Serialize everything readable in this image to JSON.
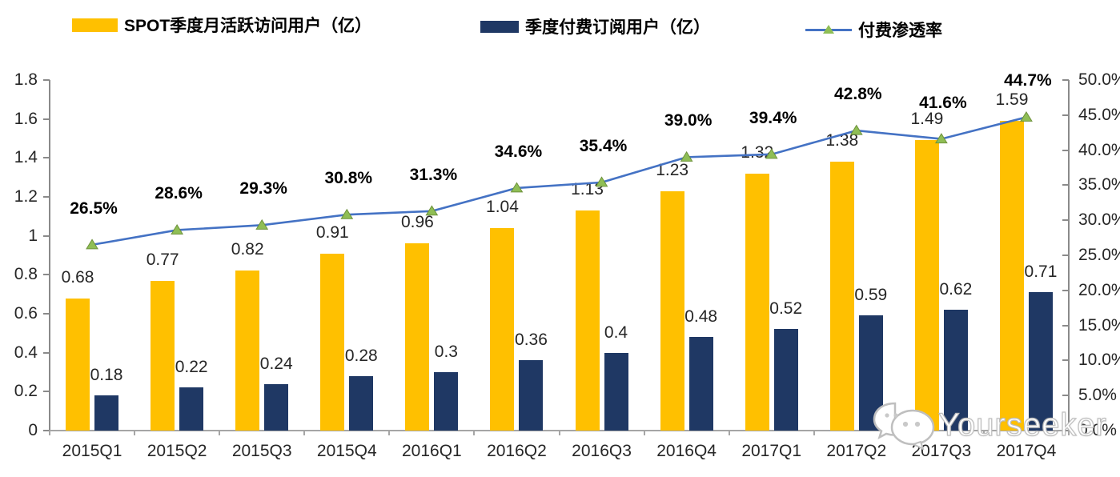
{
  "legend": {
    "items": [
      {
        "label": "SPOT季度月活跃访问用户（亿）",
        "color": "#FFC000",
        "kind": "bar-swatch"
      },
      {
        "label": "季度付费订阅用户（亿）",
        "color": "#1F3864",
        "kind": "bar-swatch"
      },
      {
        "label": "付费渗透率",
        "color": "#4472C4",
        "marker_color": "#8FBE55",
        "kind": "line-swatch"
      }
    ]
  },
  "watermark": {
    "text": "Yourseeker",
    "icon": "wechat-icon"
  },
  "chart_data": {
    "type": "combo",
    "title": "",
    "categories": [
      "2015Q1",
      "2015Q2",
      "2015Q3",
      "2015Q4",
      "2016Q1",
      "2016Q2",
      "2016Q3",
      "2016Q4",
      "2017Q1",
      "2017Q2",
      "2017Q3",
      "2017Q4"
    ],
    "series": [
      {
        "name": "SPOT季度月活跃访问用户（亿）",
        "type": "bar",
        "axis": "left",
        "color": "#FFC000",
        "values": [
          0.68,
          0.77,
          0.82,
          0.91,
          0.96,
          1.04,
          1.13,
          1.23,
          1.32,
          1.38,
          1.49,
          1.59
        ],
        "labels": [
          "0.68",
          "0.77",
          "0.82",
          "0.91",
          "0.96",
          "1.04",
          "1.13",
          "1.23",
          "1.32",
          "1.38",
          "1.49",
          "1.59"
        ]
      },
      {
        "name": "季度付费订阅用户（亿）",
        "type": "bar",
        "axis": "left",
        "color": "#1F3864",
        "values": [
          0.18,
          0.22,
          0.24,
          0.28,
          0.3,
          0.36,
          0.4,
          0.48,
          0.52,
          0.59,
          0.62,
          0.71
        ],
        "labels": [
          "0.18",
          "0.22",
          "0.24",
          "0.28",
          "0.3",
          "0.36",
          "0.4",
          "0.48",
          "0.52",
          "0.59",
          "0.62",
          "0.71"
        ]
      },
      {
        "name": "付费渗透率",
        "type": "line",
        "axis": "right",
        "color": "#4472C4",
        "marker": "triangle",
        "marker_fill": "#8FBE55",
        "marker_stroke": "#6E923C",
        "values": [
          26.5,
          28.6,
          29.3,
          30.8,
          31.3,
          34.6,
          35.4,
          39.0,
          39.4,
          42.8,
          41.6,
          44.7
        ],
        "labels": [
          "26.5%",
          "28.6%",
          "29.3%",
          "30.8%",
          "31.3%",
          "34.6%",
          "35.4%",
          "39.0%",
          "39.4%",
          "42.8%",
          "41.6%",
          "44.7%"
        ]
      }
    ],
    "left_axis": {
      "min": 0,
      "max": 1.8,
      "step": 0.2,
      "ticks": [
        "0",
        "0.2",
        "0.4",
        "0.6",
        "0.8",
        "1",
        "1.2",
        "1.4",
        "1.6",
        "1.8"
      ]
    },
    "right_axis": {
      "min": 0,
      "max": 50,
      "step": 5,
      "ticks": [
        "0.0%",
        "5.0%",
        "10.0%",
        "15.0%",
        "20.0%",
        "25.0%",
        "30.0%",
        "35.0%",
        "40.0%",
        "45.0%",
        "50.0%"
      ]
    },
    "grid": false,
    "legend_position": "top"
  }
}
